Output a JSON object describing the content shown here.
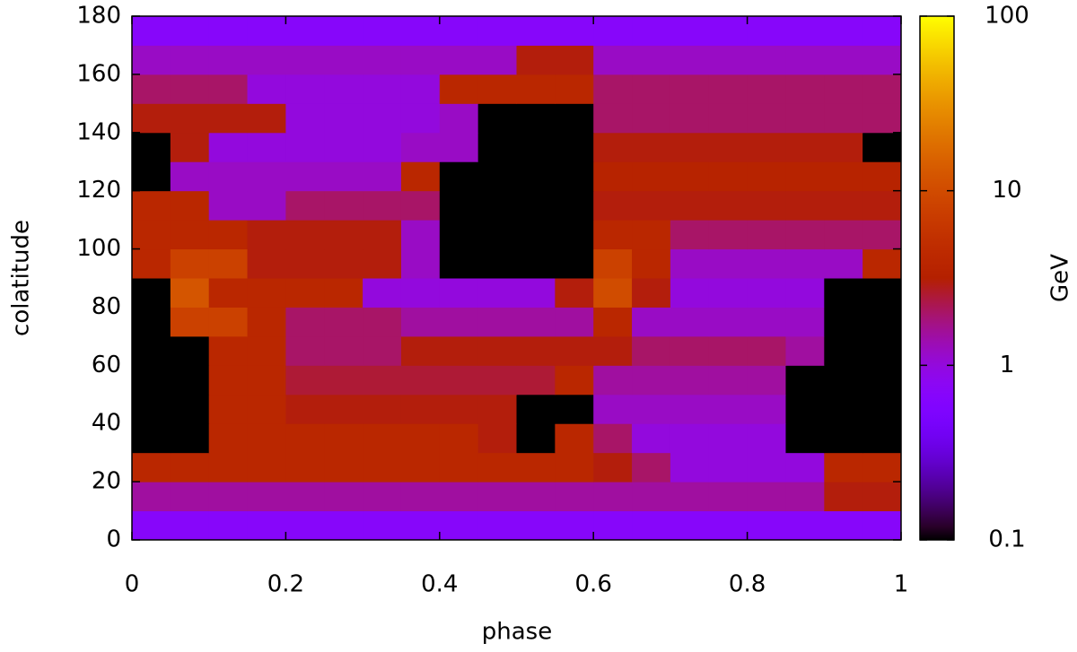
{
  "chart_data": {
    "type": "heatmap",
    "xlabel": "phase",
    "ylabel": "colatitude",
    "colorbar_label": "GeV",
    "xlim": [
      0,
      1
    ],
    "xticks": [
      0,
      0.2,
      0.4,
      0.6,
      0.8,
      1
    ],
    "ylim": [
      0,
      180
    ],
    "yticks": [
      0,
      20,
      40,
      60,
      80,
      100,
      120,
      140,
      160,
      180
    ],
    "clim": [
      0.1,
      100
    ],
    "cticks": [
      0.1,
      1,
      10,
      100
    ],
    "color_log": true,
    "xbins": [
      0,
      0.05,
      0.1,
      0.15,
      0.2,
      0.25,
      0.3,
      0.35,
      0.4,
      0.45,
      0.5,
      0.55,
      0.6,
      0.65,
      0.7,
      0.75,
      0.8,
      0.85,
      0.9,
      0.95,
      1
    ],
    "ybins": [
      0,
      10,
      20,
      30,
      40,
      50,
      60,
      70,
      80,
      90,
      100,
      110,
      120,
      130,
      140,
      150,
      160,
      170,
      180
    ],
    "z": [
      [
        0.7,
        0.7,
        0.7,
        0.7,
        0.7,
        0.7,
        0.7,
        0.7,
        0.7,
        0.7,
        0.7,
        0.7,
        0.7,
        0.7,
        0.7,
        0.7,
        0.7,
        0.7,
        0.7,
        0.7
      ],
      [
        1.5,
        1.5,
        1.5,
        1.5,
        1.5,
        1.5,
        1.5,
        1.5,
        1.5,
        1.5,
        1.5,
        1.5,
        1.5,
        1.5,
        1.5,
        1.5,
        1.5,
        1.5,
        3,
        3
      ],
      [
        4,
        4,
        4,
        4,
        4,
        4,
        4,
        4,
        4,
        4,
        4,
        4,
        3,
        2,
        1,
        1,
        1,
        1,
        4,
        4
      ],
      [
        0.1,
        0.1,
        4,
        4,
        4,
        4,
        4,
        4,
        4,
        3,
        0.1,
        4,
        2,
        1,
        1,
        1,
        1,
        0.1,
        0.1,
        0.1
      ],
      [
        0.1,
        0.1,
        4,
        4,
        3,
        3,
        3,
        3,
        3,
        3,
        0.1,
        0.1,
        1.2,
        1.2,
        1.2,
        1.2,
        1.2,
        0.1,
        0.1,
        0.1
      ],
      [
        0.1,
        0.1,
        4,
        4,
        2.5,
        2.5,
        2.5,
        2.5,
        2.5,
        2.5,
        2.5,
        4,
        1.5,
        1.5,
        1.5,
        1.5,
        1.5,
        0.1,
        0.1,
        0.1
      ],
      [
        0.1,
        0.1,
        4,
        4,
        2,
        2,
        2,
        3,
        3,
        3,
        3,
        3,
        3,
        2,
        2,
        2,
        2,
        1.5,
        0.1,
        0.1
      ],
      [
        0.1,
        8,
        8,
        4,
        2,
        2,
        2,
        1.5,
        1.5,
        1.5,
        1.5,
        1.5,
        4,
        1.2,
        1.2,
        1.2,
        1.2,
        1.2,
        0.1,
        0.1
      ],
      [
        0.1,
        12,
        4,
        4,
        4,
        4,
        1,
        1,
        1,
        1,
        1,
        3,
        10,
        3,
        1,
        1,
        1,
        1,
        0.1,
        0.1
      ],
      [
        4,
        8,
        8,
        3,
        3,
        3,
        3,
        1.2,
        0.1,
        0.1,
        0.1,
        0.1,
        8,
        4,
        1.2,
        1.2,
        1.2,
        1.2,
        1.2,
        4
      ],
      [
        4,
        4,
        4,
        3,
        3,
        3,
        3,
        1.2,
        0.1,
        0.1,
        0.1,
        0.1,
        4,
        4,
        2,
        2,
        2,
        2,
        2,
        2
      ],
      [
        4,
        4,
        1.2,
        1.2,
        2,
        2,
        2,
        2,
        0.1,
        0.1,
        0.1,
        0.1,
        3,
        3,
        3,
        3,
        3,
        3,
        3,
        3
      ],
      [
        0.1,
        1.2,
        1.2,
        1.2,
        1.2,
        1.2,
        1.2,
        4,
        0.1,
        0.1,
        0.1,
        0.1,
        3.5,
        3.5,
        3.5,
        3.5,
        3.5,
        3.5,
        3.5,
        3.5
      ],
      [
        0.1,
        3,
        1,
        1,
        1,
        1,
        1,
        1.2,
        1.2,
        0.1,
        0.1,
        0.1,
        3,
        3,
        3,
        3,
        3,
        3,
        3,
        0.1
      ],
      [
        3,
        3,
        3,
        3,
        1,
        1,
        1,
        1,
        1.2,
        0.1,
        0.1,
        0.1,
        2,
        2,
        2,
        2,
        2,
        2,
        2,
        2
      ],
      [
        2,
        2,
        2,
        1,
        1,
        1,
        1,
        1,
        4,
        4,
        4,
        4,
        2,
        2,
        2,
        2,
        2,
        2,
        2,
        2
      ],
      [
        1.2,
        1.2,
        1.2,
        1.2,
        1.2,
        1.2,
        1.2,
        1.2,
        1.2,
        1.2,
        3,
        3,
        1.2,
        1.2,
        1.2,
        1.2,
        1.2,
        1.2,
        1.2,
        1.2
      ],
      [
        0.7,
        0.7,
        0.7,
        0.7,
        0.7,
        0.7,
        0.7,
        0.7,
        0.7,
        0.7,
        0.7,
        0.7,
        0.7,
        0.7,
        0.7,
        0.7,
        0.7,
        0.7,
        0.7,
        0.7
      ]
    ]
  }
}
